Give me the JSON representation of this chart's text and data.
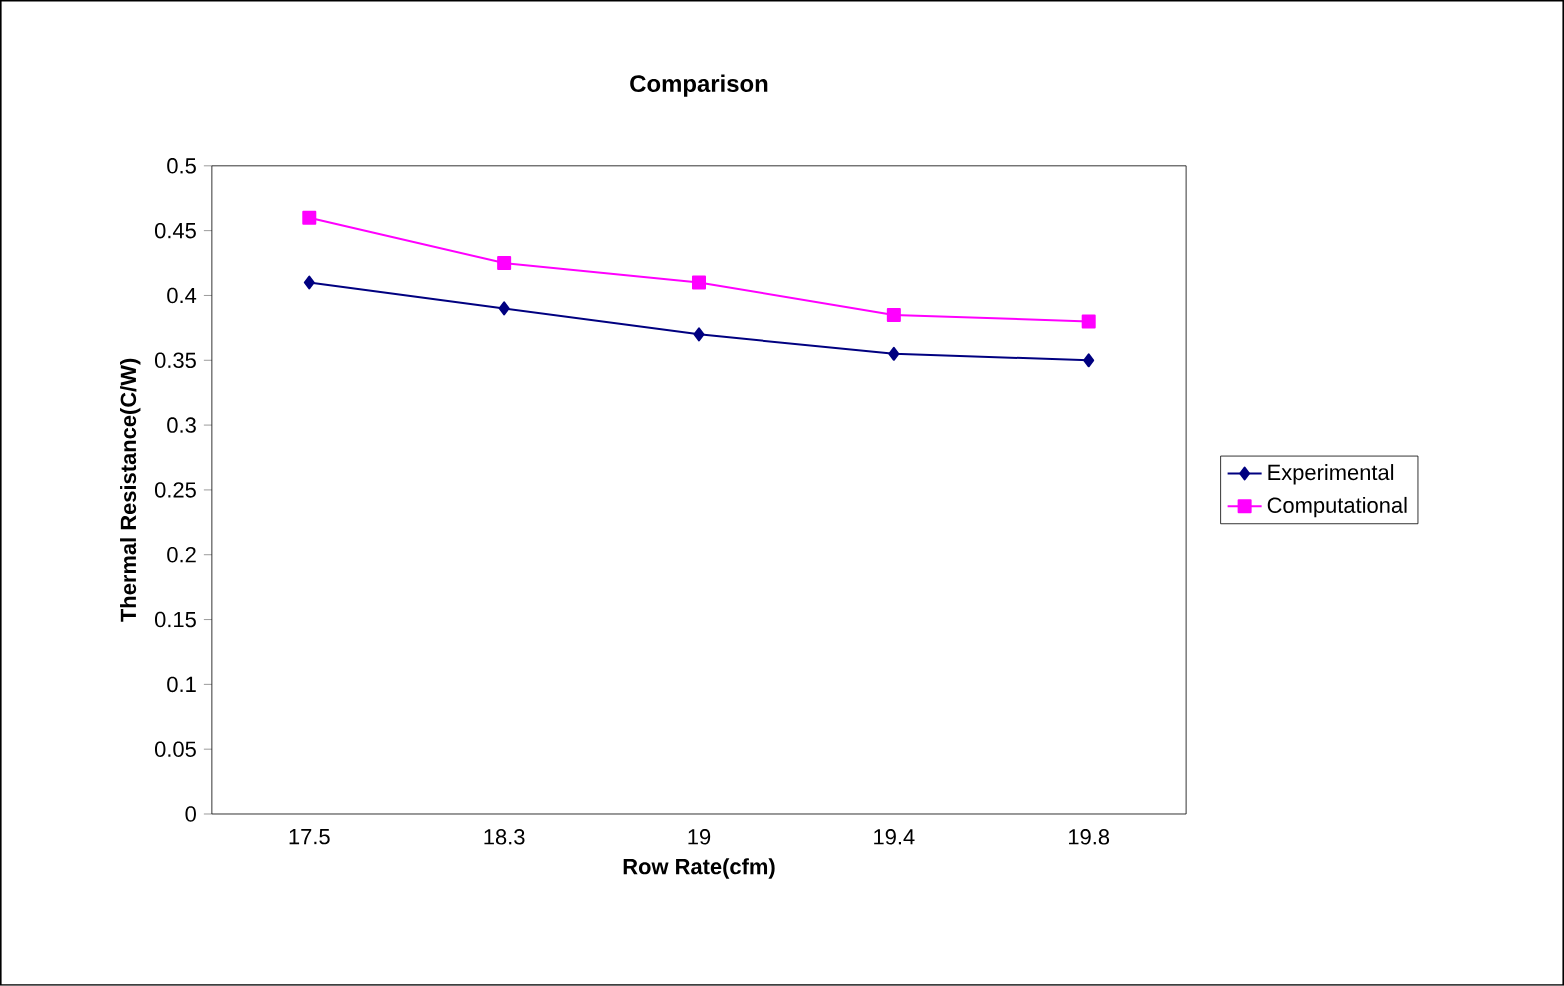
{
  "chart_data": {
    "type": "line",
    "title": "Comparison",
    "xlabel": "Row Rate(cfm)",
    "ylabel": "Thermal Resistance(C/W)",
    "categories": [
      "17.5",
      "18.3",
      "19",
      "19.4",
      "19.8"
    ],
    "series": [
      {
        "name": "Experimental",
        "color": "#000080",
        "marker": "diamond",
        "values": [
          0.41,
          0.39,
          0.37,
          0.355,
          0.35
        ]
      },
      {
        "name": "Computational",
        "color": "#ff00ff",
        "marker": "square",
        "values": [
          0.46,
          0.425,
          0.41,
          0.385,
          0.38
        ]
      }
    ],
    "ylim": [
      0,
      0.5
    ],
    "yticks": [
      0,
      0.05,
      0.1,
      0.15,
      0.2,
      0.25,
      0.3,
      0.35,
      0.4,
      0.45,
      0.5
    ],
    "grid": false,
    "legend": "right",
    "line_style": "solid"
  }
}
